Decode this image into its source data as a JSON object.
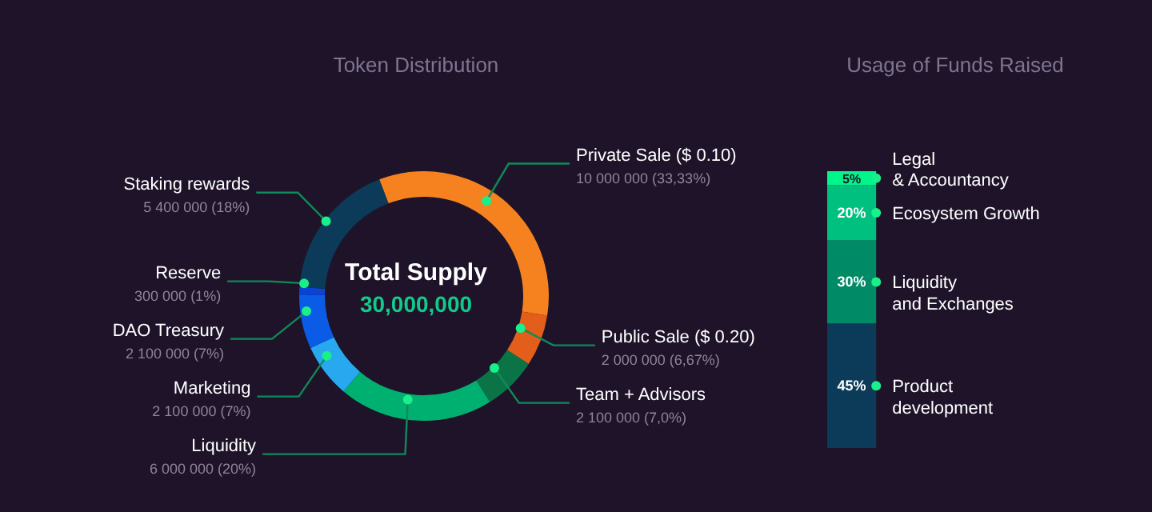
{
  "chart_data": [
    {
      "type": "donut",
      "title": "Token Distribution",
      "categories": [
        "Private Sale ($ 0.10)",
        "Public Sale ($ 0.20)",
        "Team + Advisors",
        "Liquidity",
        "Marketing",
        "DAO Treasury",
        "Reserve",
        "Staking rewards"
      ],
      "values": [
        10000000,
        2000000,
        2100000,
        6000000,
        2100000,
        2100000,
        300000,
        5400000
      ],
      "colors": [
        "#f5821f",
        "#e35e1b",
        "#0b7446",
        "#00b070",
        "#28a8ef",
        "#0a5ce6",
        "#0a44d6",
        "#0b3b58"
      ],
      "value_labels": [
        "10 000 000 (33,33%)",
        "2 000 000 (6,67%)",
        "2 100 000 (7,0%)",
        "6 000 000 (20%)",
        "2 100 000 (7%)",
        "2 100 000 (7%)",
        "300 000 (1%)",
        "5 400 000 (18%)"
      ],
      "annotations": [
        "Total Supply",
        "30,000,000"
      ],
      "legend": false
    },
    {
      "type": "bar",
      "stacked": true,
      "title": "Usage of Funds Raised",
      "categories": [
        null
      ],
      "legend": false,
      "series": [
        {
          "name": "Product\ndevelopment",
          "color": "#0b3b58",
          "values": [
            45
          ],
          "value_labels": [
            "45%"
          ]
        },
        {
          "name": "Liquidity\nand Exchanges",
          "color": "#008a66",
          "values": [
            30
          ],
          "value_labels": [
            "30%"
          ]
        },
        {
          "name": "Ecosystem Growth",
          "color": "#00c07f",
          "values": [
            20
          ],
          "value_labels": [
            "20%"
          ]
        },
        {
          "name": "Legal\n& Accountancy",
          "color": "#00f58a",
          "values": [
            5
          ],
          "value_labels": [
            "5%"
          ]
        }
      ]
    }
  ]
}
